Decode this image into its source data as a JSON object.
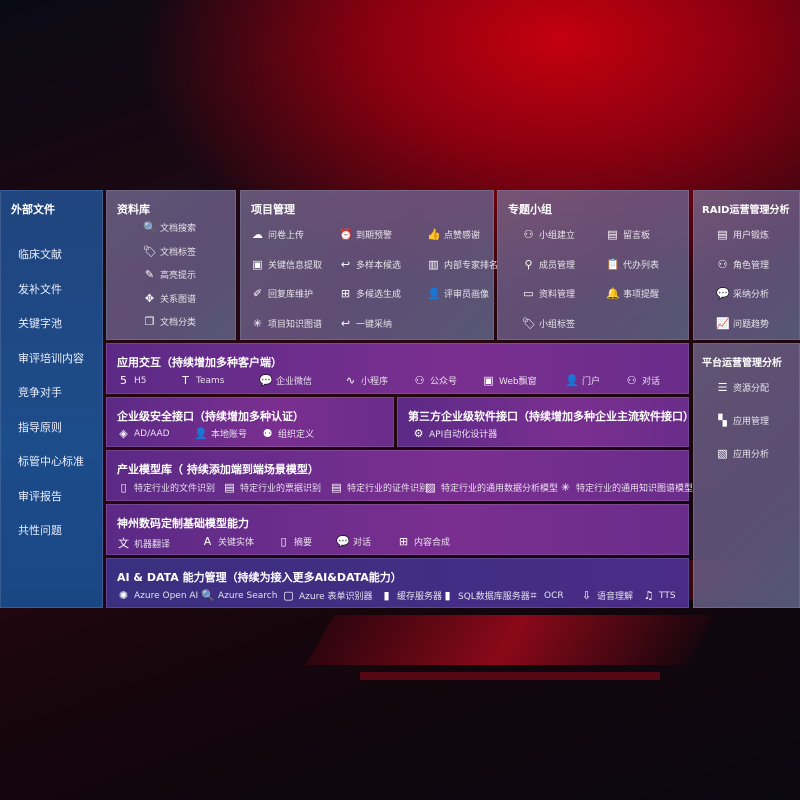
{
  "external": {
    "title": "外部文件",
    "items": [
      "临床文献",
      "发补文件",
      "关键字池",
      "审评培训内容",
      "竞争对手",
      "指导原则",
      "标管中心标准",
      "审评报告",
      "共性问题"
    ]
  },
  "panels": [
    {
      "id": "library",
      "title": "资料库",
      "items": [
        {
          "label": "文档搜索",
          "icon": "doc-search-icon"
        },
        {
          "label": "文档标签",
          "icon": "tag-icon"
        },
        {
          "label": "高亮提示",
          "icon": "pen-icon"
        },
        {
          "label": "关系图谱",
          "icon": "graph-icon"
        },
        {
          "label": "文档分类",
          "icon": "doc-stack-icon"
        }
      ]
    },
    {
      "id": "project",
      "title": "项目管理",
      "items": [
        {
          "label": "问卷上传",
          "icon": "cloud-upload-icon"
        },
        {
          "label": "到期预警",
          "icon": "alarm-icon"
        },
        {
          "label": "点赞感谢",
          "icon": "thumbs-up-icon"
        },
        {
          "label": "关键信息提取",
          "icon": "window-icon"
        },
        {
          "label": "多样本候选",
          "icon": "reply-icon"
        },
        {
          "label": "内部专家排名",
          "icon": "ranking-icon"
        },
        {
          "label": "回复库维护",
          "icon": "edit-icon"
        },
        {
          "label": "多候选生成",
          "icon": "puzzle-icon"
        },
        {
          "label": "评审员画像",
          "icon": "user-icon"
        },
        {
          "label": "项目知识图谱",
          "icon": "network-icon"
        },
        {
          "label": "一键采纳",
          "icon": "reply-icon"
        }
      ]
    },
    {
      "id": "group",
      "title": "专题小组",
      "items": [
        {
          "label": "小组建立",
          "icon": "group-icon"
        },
        {
          "label": "留言板",
          "icon": "bbs-icon"
        },
        {
          "label": "成员管理",
          "icon": "user-add-icon"
        },
        {
          "label": "代办列表",
          "icon": "clipboard-icon"
        },
        {
          "label": "资料管理",
          "icon": "folder-icon"
        },
        {
          "label": "事项提醒",
          "icon": "bell-icon"
        },
        {
          "label": "小组标签",
          "icon": "tag-icon"
        }
      ]
    },
    {
      "id": "raid",
      "title": "RAID运营管理分析",
      "items": [
        {
          "label": "用户锻炼",
          "icon": "id-card-icon"
        },
        {
          "label": "角色管理",
          "icon": "group-icon"
        },
        {
          "label": "采纳分析",
          "icon": "qa-icon"
        },
        {
          "label": "问题趋势",
          "icon": "trend-icon"
        }
      ]
    },
    {
      "id": "app",
      "title": "应用交互（持续增加多种客户端）",
      "items": [
        {
          "label": "H5",
          "icon": "html5-icon"
        },
        {
          "label": "Teams",
          "icon": "teams-icon"
        },
        {
          "label": "企业微信",
          "icon": "wechat-icon"
        },
        {
          "label": "小程序",
          "icon": "miniprogram-icon"
        },
        {
          "label": "公众号",
          "icon": "group-icon"
        },
        {
          "label": "Web飘窗",
          "icon": "window-icon"
        },
        {
          "label": "门户",
          "icon": "portal-icon"
        },
        {
          "label": "对话",
          "icon": "chat-users-icon"
        }
      ]
    },
    {
      "id": "security",
      "title": "企业级安全接口（持续增加多种认证）",
      "items": [
        {
          "label": "AD/AAD",
          "icon": "diamond-icon"
        },
        {
          "label": "本地账号",
          "icon": "user-lock-icon"
        },
        {
          "label": "组织定义",
          "icon": "org-icon"
        }
      ]
    },
    {
      "id": "thirdparty",
      "title": "第三方企业级软件接口（持续增加多种企业主流软件接口）",
      "items": [
        {
          "label": "API自动化设计器",
          "icon": "gear-icon"
        }
      ]
    },
    {
      "id": "industry",
      "title": "产业模型库（ 持续添加端到端场景模型）",
      "items": [
        {
          "label": "特定行业的文件识别",
          "icon": "file-icon"
        },
        {
          "label": "特定行业的票据识别",
          "icon": "receipt-icon"
        },
        {
          "label": "特定行业的证件识别",
          "icon": "id-card-icon"
        },
        {
          "label": "特定行业的通用数据分析模型",
          "icon": "chart-icon"
        },
        {
          "label": "特定行业的通用知识图谱模型",
          "icon": "network-icon"
        }
      ]
    },
    {
      "id": "base",
      "title": "神州数码定制基础模型能力",
      "items": [
        {
          "label": "机器翻译",
          "icon": "translate-icon"
        },
        {
          "label": "关键实体",
          "icon": "entity-icon"
        },
        {
          "label": "摘要",
          "icon": "document-icon"
        },
        {
          "label": "对话",
          "icon": "chat-icon"
        },
        {
          "label": "内容合成",
          "icon": "puzzle-icon"
        }
      ]
    },
    {
      "id": "aidata",
      "title": "AI & DATA 能力管理（持续为接入更多AI&DATA能力）",
      "items": [
        {
          "label": "Azure Open AI",
          "icon": "openai-icon"
        },
        {
          "label": "Azure Search",
          "icon": "search-icon"
        },
        {
          "label": "Azure 表单识别器",
          "icon": "form-icon"
        },
        {
          "label": "缓存服务器",
          "icon": "cache-icon"
        },
        {
          "label": "SQL数据库服务器",
          "icon": "database-icon"
        },
        {
          "label": "OCR",
          "icon": "ocr-icon"
        },
        {
          "label": "语音理解",
          "icon": "speech-icon"
        },
        {
          "label": "TTS",
          "icon": "tts-icon"
        }
      ]
    },
    {
      "id": "platform",
      "title": "平台运营管理分析",
      "items": [
        {
          "label": "资源分配",
          "icon": "checklist-icon"
        },
        {
          "label": "应用管理",
          "icon": "apps-icon"
        },
        {
          "label": "应用分析",
          "icon": "analysis-icon"
        }
      ]
    }
  ]
}
